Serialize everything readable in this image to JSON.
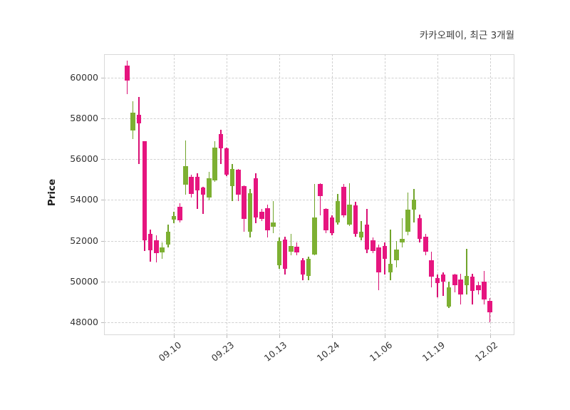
{
  "title": "카카오페이, 최근 3개월",
  "ylabel": "Price",
  "chart_data": {
    "type": "candlestick",
    "title": "카카오페이, 최근 3개월",
    "ylabel": "Price",
    "grid": true,
    "up_color": "#7db032",
    "down_color": "#e6157f",
    "up_wick_color": "#71a42b",
    "down_wick_color": "#d90f74",
    "y_ticks": [
      48000,
      50000,
      52000,
      54000,
      56000,
      58000,
      60000
    ],
    "ylim": [
      47360,
      61160
    ],
    "x_tick_labels": [
      "09.10",
      "09.23",
      "10.13",
      "10.24",
      "11.06",
      "11.19",
      "12.02"
    ],
    "x_tick_indices": [
      8,
      17,
      26,
      35,
      44,
      53,
      62
    ],
    "ohlc_order": [
      "open",
      "high",
      "low",
      "close"
    ],
    "candles": [
      [
        60610,
        60850,
        59210,
        59850
      ],
      [
        57400,
        58860,
        56990,
        58280
      ],
      [
        58180,
        59060,
        55770,
        57770
      ],
      [
        56880,
        56900,
        51500,
        52030
      ],
      [
        52320,
        52550,
        50980,
        51530
      ],
      [
        52030,
        52260,
        50920,
        51390
      ],
      [
        51410,
        51910,
        51100,
        51680
      ],
      [
        51800,
        52790,
        51680,
        52440
      ],
      [
        53020,
        53430,
        52850,
        53220
      ],
      [
        53660,
        53840,
        52900,
        52990
      ],
      [
        54750,
        56930,
        54250,
        55650
      ],
      [
        55130,
        55240,
        54130,
        54310
      ],
      [
        55130,
        55300,
        53550,
        54480
      ],
      [
        54600,
        54650,
        53310,
        54270
      ],
      [
        54130,
        55390,
        53960,
        55070
      ],
      [
        54950,
        56880,
        54890,
        56580
      ],
      [
        57230,
        57460,
        55770,
        56530
      ],
      [
        56530,
        56580,
        55180,
        55240
      ],
      [
        54660,
        55770,
        53960,
        55530
      ],
      [
        55480,
        55520,
        53960,
        54250
      ],
      [
        54680,
        54720,
        52440,
        53080
      ],
      [
        52440,
        54540,
        52150,
        54330
      ],
      [
        55070,
        55300,
        52850,
        53140
      ],
      [
        53430,
        53550,
        52960,
        53080
      ],
      [
        53610,
        53780,
        52150,
        52500
      ],
      [
        52670,
        53960,
        52380,
        52900
      ],
      [
        50800,
        52150,
        50630,
        51970
      ],
      [
        52050,
        52200,
        50340,
        50630
      ],
      [
        51450,
        52320,
        51270,
        51740
      ],
      [
        51700,
        51910,
        51270,
        51420
      ],
      [
        51040,
        51150,
        50050,
        50340
      ],
      [
        50280,
        51210,
        50050,
        51100
      ],
      [
        51330,
        54780,
        51270,
        53140
      ],
      [
        54780,
        54830,
        53250,
        54190
      ],
      [
        53550,
        53610,
        52380,
        52520
      ],
      [
        53140,
        53250,
        52260,
        52380
      ],
      [
        52900,
        54310,
        52790,
        53960
      ],
      [
        54660,
        54780,
        53140,
        53250
      ],
      [
        52790,
        54830,
        52730,
        53780
      ],
      [
        53720,
        53900,
        52200,
        52320
      ],
      [
        52150,
        52960,
        52030,
        52440
      ],
      [
        52790,
        53550,
        51390,
        51560
      ],
      [
        52030,
        52150,
        51390,
        51500
      ],
      [
        51680,
        51800,
        49580,
        50450
      ],
      [
        51740,
        51910,
        50340,
        51100
      ],
      [
        50450,
        52550,
        50050,
        50860
      ],
      [
        51040,
        51970,
        50690,
        51560
      ],
      [
        51900,
        53100,
        51680,
        52100
      ],
      [
        52430,
        54350,
        52250,
        53530
      ],
      [
        53530,
        54530,
        52890,
        54000
      ],
      [
        53100,
        53270,
        51900,
        52100
      ],
      [
        52200,
        52320,
        51270,
        51450
      ],
      [
        51040,
        51450,
        49700,
        50220
      ],
      [
        50160,
        50340,
        49230,
        49930
      ],
      [
        50340,
        50450,
        49290,
        49990
      ],
      [
        48760,
        49990,
        48700,
        49700
      ],
      [
        50340,
        50390,
        49460,
        49810
      ],
      [
        50080,
        50390,
        48880,
        49350
      ],
      [
        49810,
        51600,
        49340,
        50280
      ],
      [
        50220,
        50390,
        48880,
        49520
      ],
      [
        49810,
        49990,
        49340,
        49580
      ],
      [
        49990,
        50510,
        48880,
        49110
      ],
      [
        49050,
        49180,
        48000,
        48470
      ]
    ]
  }
}
